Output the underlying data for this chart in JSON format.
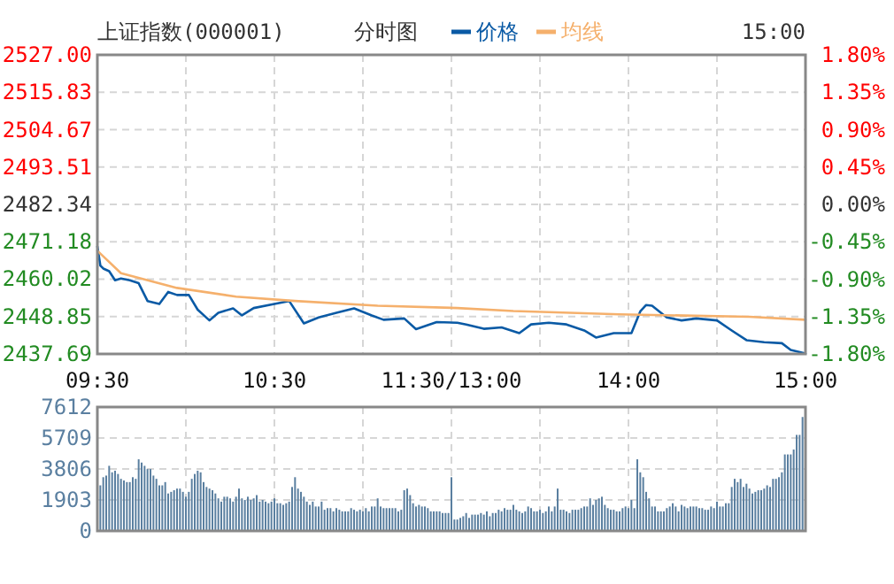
{
  "chart_data": [
    {
      "type": "line",
      "title": "上证指数(000001)",
      "subtitle": "分时图",
      "annotations": [
        "15:00"
      ],
      "legend": "top",
      "grid": true,
      "categories": [
        "09:30",
        null,
        null,
        null,
        null,
        null,
        null,
        null,
        null,
        null,
        null,
        null,
        null,
        null,
        null,
        null,
        null,
        null,
        null,
        null,
        null,
        null,
        null,
        null,
        null,
        null,
        null,
        null,
        null,
        null,
        null,
        null,
        null,
        null,
        null,
        null,
        null,
        null,
        null,
        null,
        null,
        null,
        null,
        null,
        null,
        null,
        null,
        null,
        null,
        null,
        null,
        null,
        null,
        null,
        null,
        null,
        null,
        null,
        null,
        null,
        "10:30",
        null,
        null,
        null,
        null,
        null,
        null,
        null,
        null,
        null,
        null,
        null,
        null,
        null,
        null,
        null,
        null,
        null,
        null,
        null,
        null,
        null,
        null,
        null,
        null,
        null,
        null,
        null,
        null,
        null,
        null,
        null,
        null,
        null,
        null,
        null,
        null,
        null,
        null,
        null,
        null,
        null,
        null,
        null,
        null,
        null,
        null,
        null,
        null,
        null,
        null,
        null,
        null,
        null,
        null,
        null,
        null,
        null,
        null,
        null,
        "11:30/13:00",
        null,
        null,
        null,
        null,
        null,
        null,
        null,
        null,
        null,
        null,
        null,
        null,
        null,
        null,
        null,
        null,
        null,
        null,
        null,
        null,
        null,
        null,
        null,
        null,
        null,
        null,
        null,
        null,
        null,
        null,
        null,
        null,
        null,
        null,
        null,
        null,
        null,
        null,
        null,
        null,
        null,
        null,
        null,
        null,
        null,
        null,
        null,
        null,
        null,
        null,
        null,
        null,
        null,
        null,
        null,
        null,
        null,
        null,
        null,
        "14:00",
        null,
        null,
        null,
        null,
        null,
        null,
        null,
        null,
        null,
        null,
        null,
        null,
        null,
        null,
        null,
        null,
        null,
        null,
        null,
        null,
        null,
        null,
        null,
        null,
        null,
        null,
        null,
        null,
        null,
        null,
        null,
        null,
        null,
        null,
        null,
        null,
        null,
        null,
        null,
        null,
        null,
        null,
        null,
        null,
        null,
        null,
        null,
        null,
        null,
        null,
        null,
        null,
        null,
        null,
        null,
        null,
        null,
        null,
        null,
        "15:00"
      ],
      "ylim": [
        2437.69,
        2527
      ],
      "yticks": [
        {
          "value": 2527,
          "label": "2527.00"
        },
        2515.83,
        2504.67,
        2493.51,
        2482.34,
        2471.18,
        2460.02,
        2448.85,
        2437.69
      ],
      "y2lim": [
        -1.8,
        1.8
      ],
      "y2ticks": [
        {
          "value": 1.8,
          "label": "1.80%"
        },
        {
          "value": 1.35,
          "label": "1.35%"
        },
        {
          "value": 0.9,
          "label": "0.90%"
        },
        {
          "value": 0.45,
          "label": "0.45%"
        },
        {
          "value": 0,
          "label": "0.00%"
        },
        {
          "value": -0.45,
          "label": "-0.45%"
        },
        {
          "value": -0.9,
          "label": "-0.90%"
        },
        {
          "value": -1.35,
          "label": "-1.35%"
        },
        {
          "value": -1.8,
          "label": "-1.80%"
        }
      ],
      "series": [
        {
          "name": "价格",
          "color": "#0a5aa5",
          "values": [
            2469.8,
            2464.1,
            2463.2,
            null,
            2462.4,
            null,
            2459.7,
            null,
            2460.2,
            null,
            null,
            2459.7,
            null,
            null,
            2458.8,
            null,
            null,
            2453.5,
            null,
            null,
            null,
            2452.6,
            null,
            null,
            2456.2,
            null,
            null,
            2455.3,
            null,
            null,
            null,
            2455.3,
            null,
            null,
            2450.9,
            null,
            null,
            null,
            2447.7,
            null,
            null,
            2450.0,
            null,
            null,
            null,
            null,
            2451.3,
            null,
            null,
            2449.2,
            null,
            null,
            null,
            2451.4,
            null,
            null,
            null,
            null,
            null,
            null,
            2452.6,
            null,
            null,
            null,
            null,
            2453.5,
            null,
            null,
            null,
            null,
            2446.8,
            null,
            null,
            null,
            null,
            2448.6,
            null,
            null,
            null,
            null,
            null,
            2450.0,
            null,
            null,
            null,
            null,
            null,
            2451.3,
            null,
            null,
            null,
            null,
            null,
            2449.2,
            null,
            null,
            null,
            2447.9,
            null,
            null,
            null,
            null,
            null,
            null,
            2448.3,
            null,
            null,
            null,
            2445.1,
            null,
            null,
            null,
            null,
            null,
            null,
            2447.2,
            null,
            null,
            null,
            null,
            null,
            null,
            2447.0,
            null,
            null,
            2446.5,
            null,
            null,
            null,
            null,
            null,
            2445.2,
            null,
            null,
            null,
            null,
            null,
            2445.6,
            null,
            null,
            null,
            null,
            null,
            2443.9,
            null,
            null,
            null,
            2446.5,
            null,
            null,
            null,
            null,
            null,
            2447.0,
            null,
            null,
            null,
            null,
            null,
            2446.5,
            null,
            null,
            null,
            null,
            null,
            2444.7,
            null,
            null,
            null,
            2442.6,
            null,
            null,
            null,
            null,
            null,
            2443.9,
            null,
            null,
            null,
            null,
            null,
            2443.9,
            null,
            null,
            2450.4,
            null,
            2452.3,
            null,
            2452.1,
            null,
            null,
            2450.0,
            null,
            2448.6,
            null,
            null,
            null,
            null,
            2447.7,
            null,
            null,
            null,
            null,
            2448.3,
            null,
            null,
            null,
            null,
            null,
            null,
            2447.7,
            null,
            null,
            null,
            null,
            2444.7,
            null,
            null,
            null,
            null,
            2441.8,
            null,
            null,
            null,
            null,
            null,
            2441.2,
            null,
            null,
            null,
            null,
            null,
            2440.9,
            null,
            null,
            2438.9,
            null,
            null,
            null,
            null,
            2437.8
          ]
        },
        {
          "name": "均线",
          "color": "#f5b06c",
          "values": [
            2468.5,
            null,
            null,
            null,
            null,
            null,
            null,
            null,
            2461.8,
            null,
            null,
            null,
            null,
            null,
            null,
            null,
            null,
            null,
            null,
            null,
            null,
            null,
            null,
            null,
            null,
            null,
            null,
            2457.4,
            null,
            null,
            null,
            null,
            null,
            null,
            null,
            null,
            null,
            null,
            null,
            null,
            null,
            null,
            null,
            null,
            null,
            null,
            null,
            2454.8,
            null,
            null,
            null,
            null,
            null,
            null,
            null,
            null,
            null,
            null,
            null,
            null,
            null,
            null,
            null,
            null,
            null,
            null,
            null,
            2453.5,
            null,
            null,
            null,
            null,
            null,
            null,
            null,
            null,
            null,
            null,
            null,
            null,
            null,
            null,
            null,
            null,
            null,
            null,
            null,
            null,
            null,
            null,
            null,
            null,
            null,
            null,
            null,
            2452.1,
            null,
            null,
            null,
            null,
            null,
            null,
            null,
            null,
            null,
            null,
            null,
            null,
            null,
            null,
            null,
            null,
            null,
            null,
            null,
            null,
            null,
            null,
            null,
            null,
            null,
            null,
            2451.4,
            null,
            null,
            null,
            null,
            null,
            null,
            null,
            null,
            null,
            null,
            null,
            null,
            null,
            null,
            null,
            null,
            null,
            null,
            2450.5,
            null,
            null,
            null,
            null,
            null,
            null,
            null,
            null,
            null,
            null,
            null,
            null,
            null,
            null,
            null,
            null,
            null,
            null,
            null,
            null,
            null,
            null,
            null,
            null,
            null,
            null,
            null,
            null,
            null,
            null,
            null,
            null,
            null,
            null,
            null,
            2449.5,
            null,
            null,
            null,
            null,
            null,
            null,
            null,
            null,
            null,
            null,
            null,
            null,
            null,
            null,
            null,
            null,
            null,
            null,
            null,
            null,
            null,
            null,
            null,
            null,
            null,
            null,
            null,
            null,
            null,
            null,
            null,
            null,
            null,
            null,
            null,
            null,
            null,
            null,
            null,
            null,
            null,
            null,
            null,
            2448.8,
            null,
            null,
            null,
            null,
            null,
            null,
            null,
            null,
            null,
            null,
            null,
            null,
            null,
            null,
            null,
            null,
            null,
            null,
            2447.9
          ]
        }
      ]
    },
    {
      "type": "bar",
      "color": "#5a7fa0",
      "grid": true,
      "tick_labels": "y",
      "categories": [
        null,
        null,
        null,
        null,
        null,
        null,
        null,
        null,
        null,
        null,
        null,
        null,
        null,
        null,
        null,
        null,
        null,
        null,
        null,
        null,
        null,
        null,
        null,
        null,
        null,
        null,
        null,
        null,
        null,
        null,
        null,
        null,
        null,
        null,
        null,
        null,
        null,
        null,
        null,
        null,
        null,
        null,
        null,
        null,
        null,
        null,
        null,
        null,
        null,
        null,
        null,
        null,
        null,
        null,
        null,
        null,
        null,
        null,
        null,
        null,
        null,
        null,
        null,
        null,
        null,
        null,
        null,
        null,
        null,
        null,
        null,
        null,
        null,
        null,
        null,
        null,
        null,
        null,
        null,
        null,
        null,
        null,
        null,
        null,
        null,
        null,
        null,
        null,
        null,
        null,
        null,
        null,
        null,
        null,
        null,
        null,
        null,
        null,
        null,
        null,
        null,
        null,
        null,
        null,
        null,
        null,
        null,
        null,
        null,
        null,
        null,
        null,
        null,
        null,
        null,
        null,
        null,
        null,
        null,
        null,
        null,
        null,
        null,
        null,
        null,
        null,
        null,
        null,
        null,
        null,
        null,
        null,
        null,
        null,
        null,
        null,
        null,
        null,
        null,
        null,
        null,
        null,
        null,
        null,
        null,
        null,
        null,
        null,
        null,
        null,
        null,
        null,
        null,
        null,
        null,
        null,
        null,
        null,
        null,
        null,
        null,
        null,
        null,
        null,
        null,
        null,
        null,
        null,
        null,
        null,
        null,
        null,
        null,
        null,
        null,
        null,
        null,
        null,
        null,
        null,
        null,
        null,
        null,
        null,
        null,
        null,
        null,
        null,
        null,
        null,
        null,
        null,
        null,
        null,
        null,
        null,
        null,
        null,
        null,
        null,
        null,
        null,
        null,
        null,
        null,
        null,
        null,
        null,
        null,
        null,
        null,
        null,
        null,
        null,
        null,
        null,
        null,
        null,
        null,
        null,
        null,
        null,
        null,
        null,
        null,
        null,
        null,
        null,
        null,
        null,
        null,
        null,
        null,
        null,
        null,
        null,
        null,
        null,
        null,
        null,
        null
      ],
      "ylim": [
        0,
        7612
      ],
      "yticks": [
        0,
        1903,
        3806,
        5709,
        7612
      ],
      "values": [
        null,
        2800,
        3300,
        3400,
        4000,
        3600,
        3700,
        3500,
        3200,
        3100,
        3000,
        3000,
        3300,
        3200,
        4400,
        4200,
        4000,
        3800,
        3800,
        3400,
        3200,
        2800,
        2800,
        3000,
        2300,
        2400,
        2500,
        2600,
        2600,
        2400,
        2100,
        2400,
        3200,
        3500,
        3700,
        3600,
        3000,
        2700,
        2600,
        2500,
        2300,
        2000,
        1800,
        2100,
        2100,
        2000,
        1800,
        2100,
        2600,
        2000,
        1900,
        2100,
        1900,
        2000,
        2200,
        1800,
        1900,
        1800,
        1700,
        1800,
        2000,
        1700,
        1700,
        1600,
        1700,
        1800,
        2700,
        3300,
        2600,
        2400,
        2100,
        1800,
        1600,
        1800,
        1500,
        1500,
        1800,
        1300,
        1400,
        1400,
        1200,
        1400,
        1300,
        1200,
        1200,
        1200,
        1400,
        1300,
        1200,
        1300,
        1200,
        1400,
        1200,
        1500,
        1500,
        2000,
        1500,
        1400,
        1400,
        1400,
        1400,
        1400,
        1200,
        1300,
        2500,
        2600,
        2200,
        1700,
        1500,
        1600,
        1500,
        1500,
        1400,
        1200,
        1200,
        1200,
        1200,
        1100,
        1100,
        1100,
        3300,
        700,
        700,
        800,
        900,
        1100,
        800,
        1000,
        1000,
        1000,
        1100,
        1000,
        1200,
        900,
        1100,
        1100,
        1300,
        1200,
        1400,
        1300,
        1300,
        1600,
        1300,
        1200,
        1100,
        1200,
        1500,
        1400,
        1200,
        1200,
        1300,
        1100,
        1200,
        1500,
        1200,
        1500,
        2600,
        1300,
        1300,
        1200,
        1100,
        1300,
        1300,
        1300,
        1400,
        1500,
        1500,
        2000,
        1600,
        1900,
        2000,
        2100,
        1600,
        1400,
        1300,
        1300,
        1200,
        1200,
        1400,
        1500,
        1400,
        1900,
        1400,
        4400,
        3600,
        3300,
        2400,
        2000,
        1500,
        1500,
        1200,
        1200,
        1200,
        1400,
        1500,
        1700,
        1500,
        1200,
        1600,
        1500,
        1400,
        1500,
        1500,
        1500,
        1400,
        1400,
        1300,
        1300,
        1500,
        1400,
        1800,
        1500,
        1500,
        1700,
        1700,
        2700,
        3200,
        3000,
        3200,
        2700,
        2900,
        2600,
        2300,
        2400,
        2500,
        2500,
        2600,
        2800,
        2700,
        3200,
        3200,
        3300,
        3600,
        4700,
        4700,
        4700,
        5000,
        5900,
        5900,
        7000,
        null
      ]
    }
  ]
}
